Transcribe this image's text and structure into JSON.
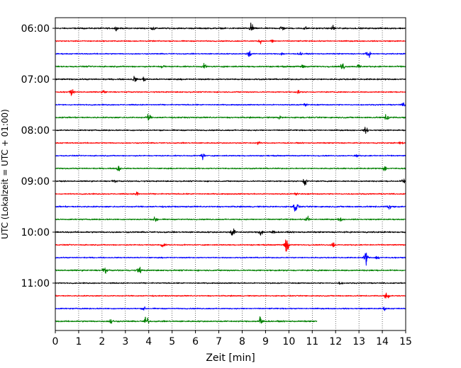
{
  "chart_data": {
    "type": "line",
    "title": "",
    "xlabel": "Zeit  [min]",
    "ylabel": "UTC (Lokalzeit = UTC + 01:00)",
    "xlim": [
      0,
      15
    ],
    "x_ticks": [
      0,
      1,
      2,
      3,
      4,
      5,
      6,
      7,
      8,
      9,
      10,
      11,
      12,
      13,
      14,
      15
    ],
    "x_tick_labels": [
      "0",
      "1",
      "2",
      "3",
      "4",
      "5",
      "6",
      "7",
      "8",
      "9",
      "10",
      "11",
      "12",
      "13",
      "14",
      "15"
    ],
    "y_tick_labels": [
      "06:00",
      "07:00",
      "08:00",
      "09:00",
      "10:00",
      "11:00"
    ],
    "y_tick_trace_index": [
      0,
      4,
      8,
      12,
      16,
      20
    ],
    "grid": "vertical dotted",
    "trace_interval_min": 15,
    "color_cycle": [
      "#000000",
      "#ff0000",
      "#0000ff",
      "#008000"
    ],
    "series": [
      {
        "start": "06:00",
        "color": "#000000",
        "length_min": 15,
        "amp": 0.15,
        "events": [
          [
            2.6,
            0.3
          ],
          [
            4.2,
            0.35
          ],
          [
            8.4,
            1.2
          ],
          [
            9.7,
            0.6
          ],
          [
            10.7,
            0.3
          ],
          [
            11.9,
            0.6
          ]
        ]
      },
      {
        "start": "06:15",
        "color": "#ff0000",
        "length_min": 15,
        "amp": 0.12,
        "events": [
          [
            8.8,
            0.5
          ],
          [
            9.3,
            0.3
          ]
        ]
      },
      {
        "start": "06:30",
        "color": "#0000ff",
        "length_min": 15,
        "amp": 0.12,
        "events": [
          [
            8.3,
            0.8
          ],
          [
            9.7,
            0.3
          ],
          [
            10.5,
            0.3
          ],
          [
            13.4,
            0.8
          ]
        ]
      },
      {
        "start": "06:45",
        "color": "#008000",
        "length_min": 15,
        "amp": 0.15,
        "events": [
          [
            4.6,
            0.4
          ],
          [
            6.4,
            0.5
          ],
          [
            10.6,
            0.4
          ],
          [
            12.3,
            0.9
          ],
          [
            13.0,
            0.6
          ]
        ]
      },
      {
        "start": "07:00",
        "color": "#000000",
        "length_min": 15,
        "amp": 0.15,
        "events": [
          [
            3.4,
            0.6
          ],
          [
            3.8,
            0.5
          ]
        ]
      },
      {
        "start": "07:15",
        "color": "#ff0000",
        "length_min": 15,
        "amp": 0.12,
        "events": [
          [
            0.7,
            0.6
          ],
          [
            2.1,
            0.4
          ],
          [
            10.4,
            0.3
          ]
        ]
      },
      {
        "start": "07:30",
        "color": "#0000ff",
        "length_min": 15,
        "amp": 0.12,
        "events": [
          [
            10.7,
            0.5
          ],
          [
            14.9,
            0.3
          ]
        ]
      },
      {
        "start": "07:45",
        "color": "#008000",
        "length_min": 15,
        "amp": 0.15,
        "events": [
          [
            4.0,
            0.7
          ],
          [
            9.6,
            0.3
          ],
          [
            14.2,
            0.8
          ]
        ]
      },
      {
        "start": "08:00",
        "color": "#000000",
        "length_min": 15,
        "amp": 0.13,
        "events": [
          [
            13.3,
            0.6
          ]
        ]
      },
      {
        "start": "08:15",
        "color": "#ff0000",
        "length_min": 15,
        "amp": 0.12,
        "events": [
          [
            8.7,
            0.3
          ],
          [
            14.8,
            0.3
          ]
        ]
      },
      {
        "start": "08:30",
        "color": "#0000ff",
        "length_min": 15,
        "amp": 0.12,
        "events": [
          [
            6.3,
            0.8
          ],
          [
            12.9,
            0.3
          ]
        ]
      },
      {
        "start": "08:45",
        "color": "#008000",
        "length_min": 15,
        "amp": 0.13,
        "events": [
          [
            2.7,
            0.9
          ],
          [
            14.1,
            0.6
          ]
        ]
      },
      {
        "start": "09:00",
        "color": "#000000",
        "length_min": 15,
        "amp": 0.13,
        "events": [
          [
            2.5,
            0.3
          ],
          [
            10.7,
            1.0
          ],
          [
            14.9,
            0.5
          ]
        ]
      },
      {
        "start": "09:15",
        "color": "#ff0000",
        "length_min": 15,
        "amp": 0.12,
        "events": [
          [
            3.5,
            0.4
          ],
          [
            10.3,
            0.4
          ]
        ]
      },
      {
        "start": "09:30",
        "color": "#0000ff",
        "length_min": 15,
        "amp": 0.15,
        "events": [
          [
            10.3,
            1.5
          ],
          [
            14.3,
            0.5
          ]
        ]
      },
      {
        "start": "09:45",
        "color": "#008000",
        "length_min": 15,
        "amp": 0.13,
        "events": [
          [
            4.3,
            0.7
          ],
          [
            10.8,
            0.6
          ],
          [
            12.2,
            0.4
          ]
        ]
      },
      {
        "start": "10:00",
        "color": "#000000",
        "length_min": 15,
        "amp": 0.15,
        "events": [
          [
            7.6,
            1.1
          ],
          [
            8.8,
            0.8
          ],
          [
            9.3,
            0.5
          ]
        ]
      },
      {
        "start": "10:15",
        "color": "#ff0000",
        "length_min": 15,
        "amp": 0.12,
        "events": [
          [
            4.6,
            0.6
          ],
          [
            9.9,
            2.2
          ],
          [
            11.9,
            0.6
          ]
        ]
      },
      {
        "start": "10:30",
        "color": "#0000ff",
        "length_min": 15,
        "amp": 0.12,
        "events": [
          [
            13.3,
            1.4
          ],
          [
            13.8,
            0.5
          ]
        ]
      },
      {
        "start": "10:45",
        "color": "#008000",
        "length_min": 15,
        "amp": 0.15,
        "events": [
          [
            2.1,
            0.8
          ],
          [
            3.6,
            0.7
          ]
        ]
      },
      {
        "start": "11:00",
        "color": "#000000",
        "length_min": 15,
        "amp": 0.12,
        "events": [
          [
            12.2,
            0.3
          ]
        ]
      },
      {
        "start": "11:15",
        "color": "#ff0000",
        "length_min": 15,
        "amp": 0.12,
        "events": [
          [
            14.2,
            0.9
          ]
        ]
      },
      {
        "start": "11:30",
        "color": "#0000ff",
        "length_min": 15,
        "amp": 0.12,
        "events": [
          [
            3.8,
            0.3
          ],
          [
            14.1,
            0.3
          ]
        ]
      },
      {
        "start": "11:45",
        "color": "#008000",
        "length_min": 11.2,
        "amp": 0.15,
        "events": [
          [
            2.4,
            0.6
          ],
          [
            3.9,
            1.3
          ],
          [
            8.8,
            1.4
          ]
        ]
      }
    ]
  }
}
